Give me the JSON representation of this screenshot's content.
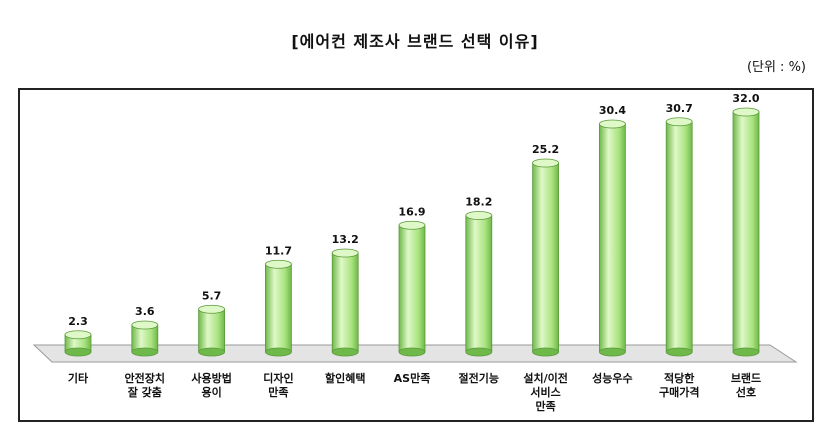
{
  "chart_data": {
    "type": "bar",
    "title": "[에어컨 제조사 브랜드 선택 이유]",
    "unit_label": "(단위 : %)",
    "categories": [
      [
        "기타"
      ],
      [
        "안전장치",
        "잘 갖춤"
      ],
      [
        "사용방법",
        "용이"
      ],
      [
        "디자인",
        "만족"
      ],
      [
        "할인혜택"
      ],
      [
        "AS만족"
      ],
      [
        "절전기능"
      ],
      [
        "설치/이전",
        "서비스",
        "만족"
      ],
      [
        "성능우수"
      ],
      [
        "적당한",
        "구매가격"
      ],
      [
        "브랜드",
        "선호"
      ]
    ],
    "values": [
      2.3,
      3.6,
      5.7,
      11.7,
      13.2,
      16.9,
      18.2,
      25.2,
      30.4,
      30.7,
      32.0
    ],
    "value_labels": [
      "2.3",
      "3.6",
      "5.7",
      "11.7",
      "13.2",
      "16.9",
      "18.2",
      "25.2",
      "30.4",
      "30.7",
      "32.0"
    ],
    "bar_color": "#a9e37f",
    "bar_color_dark": "#6fb84a",
    "bar_color_light": "#dff8c8",
    "floor_color": "#e4e4e4"
  }
}
